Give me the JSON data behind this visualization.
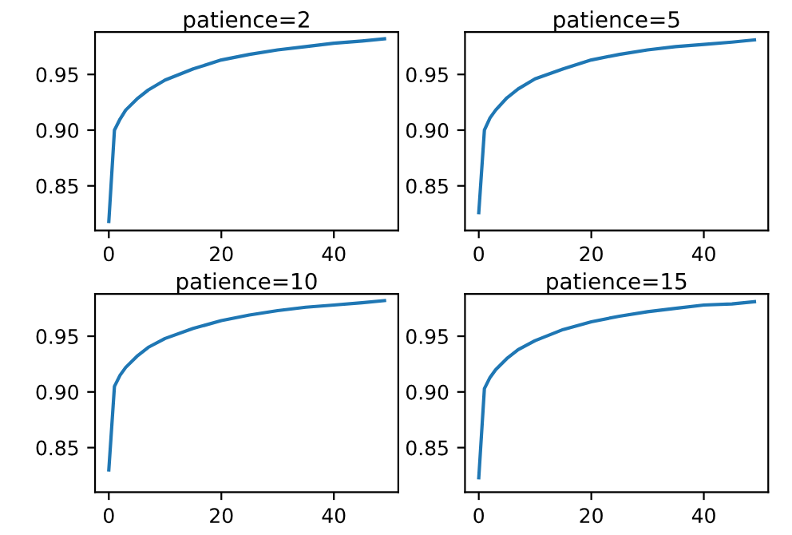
{
  "chart_data": [
    {
      "type": "line",
      "title": "patience=2",
      "x": [
        0,
        1,
        2,
        3,
        5,
        7,
        10,
        15,
        20,
        25,
        30,
        35,
        40,
        45,
        49
      ],
      "series": [
        {
          "color": "#1f77b4",
          "values": [
            0.818,
            0.9,
            0.91,
            0.918,
            0.928,
            0.936,
            0.945,
            0.955,
            0.963,
            0.968,
            0.972,
            0.975,
            0.978,
            0.98,
            0.982
          ]
        }
      ],
      "xlim": [
        -2.45,
        51.45
      ],
      "ylim": [
        0.81,
        0.988
      ],
      "xticks": [
        0,
        20,
        40
      ],
      "yticks": [
        {
          "value": 0.85,
          "label": "0.85"
        },
        {
          "value": 0.9,
          "label": "0.90"
        },
        {
          "value": 0.95,
          "label": "0.95"
        }
      ]
    },
    {
      "type": "line",
      "title": "patience=5",
      "x": [
        0,
        1,
        2,
        3,
        5,
        7,
        10,
        15,
        20,
        25,
        30,
        35,
        40,
        45,
        49
      ],
      "series": [
        {
          "color": "#1f77b4",
          "values": [
            0.826,
            0.9,
            0.911,
            0.918,
            0.929,
            0.937,
            0.946,
            0.955,
            0.963,
            0.968,
            0.972,
            0.975,
            0.977,
            0.979,
            0.981
          ]
        }
      ],
      "xlim": [
        -2.45,
        51.45
      ],
      "ylim": [
        0.81,
        0.988
      ],
      "xticks": [
        0,
        20,
        40
      ],
      "yticks": [
        {
          "value": 0.85,
          "label": "0.85"
        },
        {
          "value": 0.9,
          "label": "0.90"
        },
        {
          "value": 0.95,
          "label": "0.95"
        }
      ]
    },
    {
      "type": "line",
      "title": "patience=10",
      "x": [
        0,
        1,
        2,
        3,
        5,
        7,
        10,
        15,
        20,
        25,
        30,
        35,
        40,
        45,
        49
      ],
      "series": [
        {
          "color": "#1f77b4",
          "values": [
            0.83,
            0.905,
            0.915,
            0.922,
            0.932,
            0.94,
            0.948,
            0.957,
            0.964,
            0.969,
            0.973,
            0.976,
            0.978,
            0.98,
            0.982
          ]
        }
      ],
      "xlim": [
        -2.45,
        51.45
      ],
      "ylim": [
        0.81,
        0.988
      ],
      "xticks": [
        0,
        20,
        40
      ],
      "yticks": [
        {
          "value": 0.85,
          "label": "0.85"
        },
        {
          "value": 0.9,
          "label": "0.90"
        },
        {
          "value": 0.95,
          "label": "0.95"
        }
      ]
    },
    {
      "type": "line",
      "title": "patience=15",
      "x": [
        0,
        1,
        2,
        3,
        5,
        7,
        10,
        15,
        20,
        25,
        30,
        35,
        40,
        45,
        49
      ],
      "series": [
        {
          "color": "#1f77b4",
          "values": [
            0.823,
            0.903,
            0.913,
            0.92,
            0.93,
            0.938,
            0.946,
            0.956,
            0.963,
            0.968,
            0.972,
            0.975,
            0.978,
            0.979,
            0.981
          ]
        }
      ],
      "xlim": [
        -2.45,
        51.45
      ],
      "ylim": [
        0.81,
        0.988
      ],
      "xticks": [
        0,
        20,
        40
      ],
      "yticks": [
        {
          "value": 0.85,
          "label": "0.85"
        },
        {
          "value": 0.9,
          "label": "0.90"
        },
        {
          "value": 0.95,
          "label": "0.95"
        }
      ]
    }
  ]
}
